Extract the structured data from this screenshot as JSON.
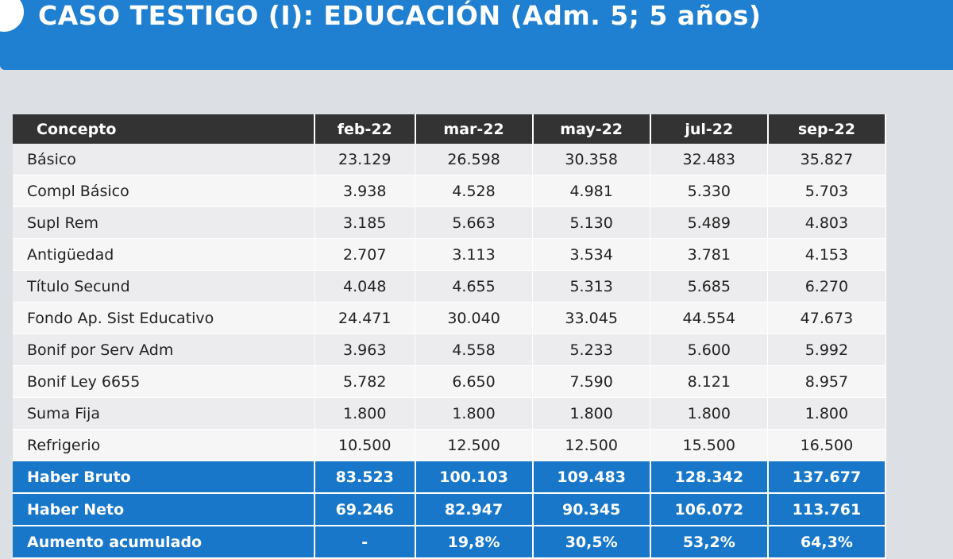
{
  "header": {
    "title": "CASO TESTIGO (I): EDUCACIÓN (Adm. 5; 5 años)"
  },
  "table": {
    "columns": [
      "Concepto",
      "feb-22",
      "mar-22",
      "may-22",
      "jul-22",
      "sep-22"
    ],
    "rows": [
      [
        "Básico",
        "23.129",
        "26.598",
        "30.358",
        "32.483",
        "35.827"
      ],
      [
        "Compl Básico",
        "3.938",
        "4.528",
        "4.981",
        "5.330",
        "5.703"
      ],
      [
        "Supl Rem",
        "3.185",
        "5.663",
        "5.130",
        "5.489",
        "4.803"
      ],
      [
        "Antigüedad",
        "2.707",
        "3.113",
        "3.534",
        "3.781",
        "4.153"
      ],
      [
        "Título Secund",
        "4.048",
        "4.655",
        "5.313",
        "5.685",
        "6.270"
      ],
      [
        "Fondo Ap. Sist Educativo",
        "24.471",
        "30.040",
        "33.045",
        "44.554",
        "47.673"
      ],
      [
        "Bonif por Serv Adm",
        "3.963",
        "4.558",
        "5.233",
        "5.600",
        "5.992"
      ],
      [
        "Bonif Ley 6655",
        "5.782",
        "6.650",
        "7.590",
        "8.121",
        "8.957"
      ],
      [
        "Suma Fija",
        "1.800",
        "1.800",
        "1.800",
        "1.800",
        "1.800"
      ],
      [
        "Refrigerio",
        "10.500",
        "12.500",
        "12.500",
        "15.500",
        "16.500"
      ],
      [
        "Haber Bruto",
        "83.523",
        "100.103",
        "109.483",
        "128.342",
        "137.677"
      ],
      [
        "Haber Neto",
        "69.246",
        "82.947",
        "90.345",
        "106.072",
        "113.761"
      ],
      [
        "Aumento acumulado",
        "-",
        "19,8%",
        "30,5%",
        "53,2%",
        "64,3%"
      ]
    ]
  }
}
